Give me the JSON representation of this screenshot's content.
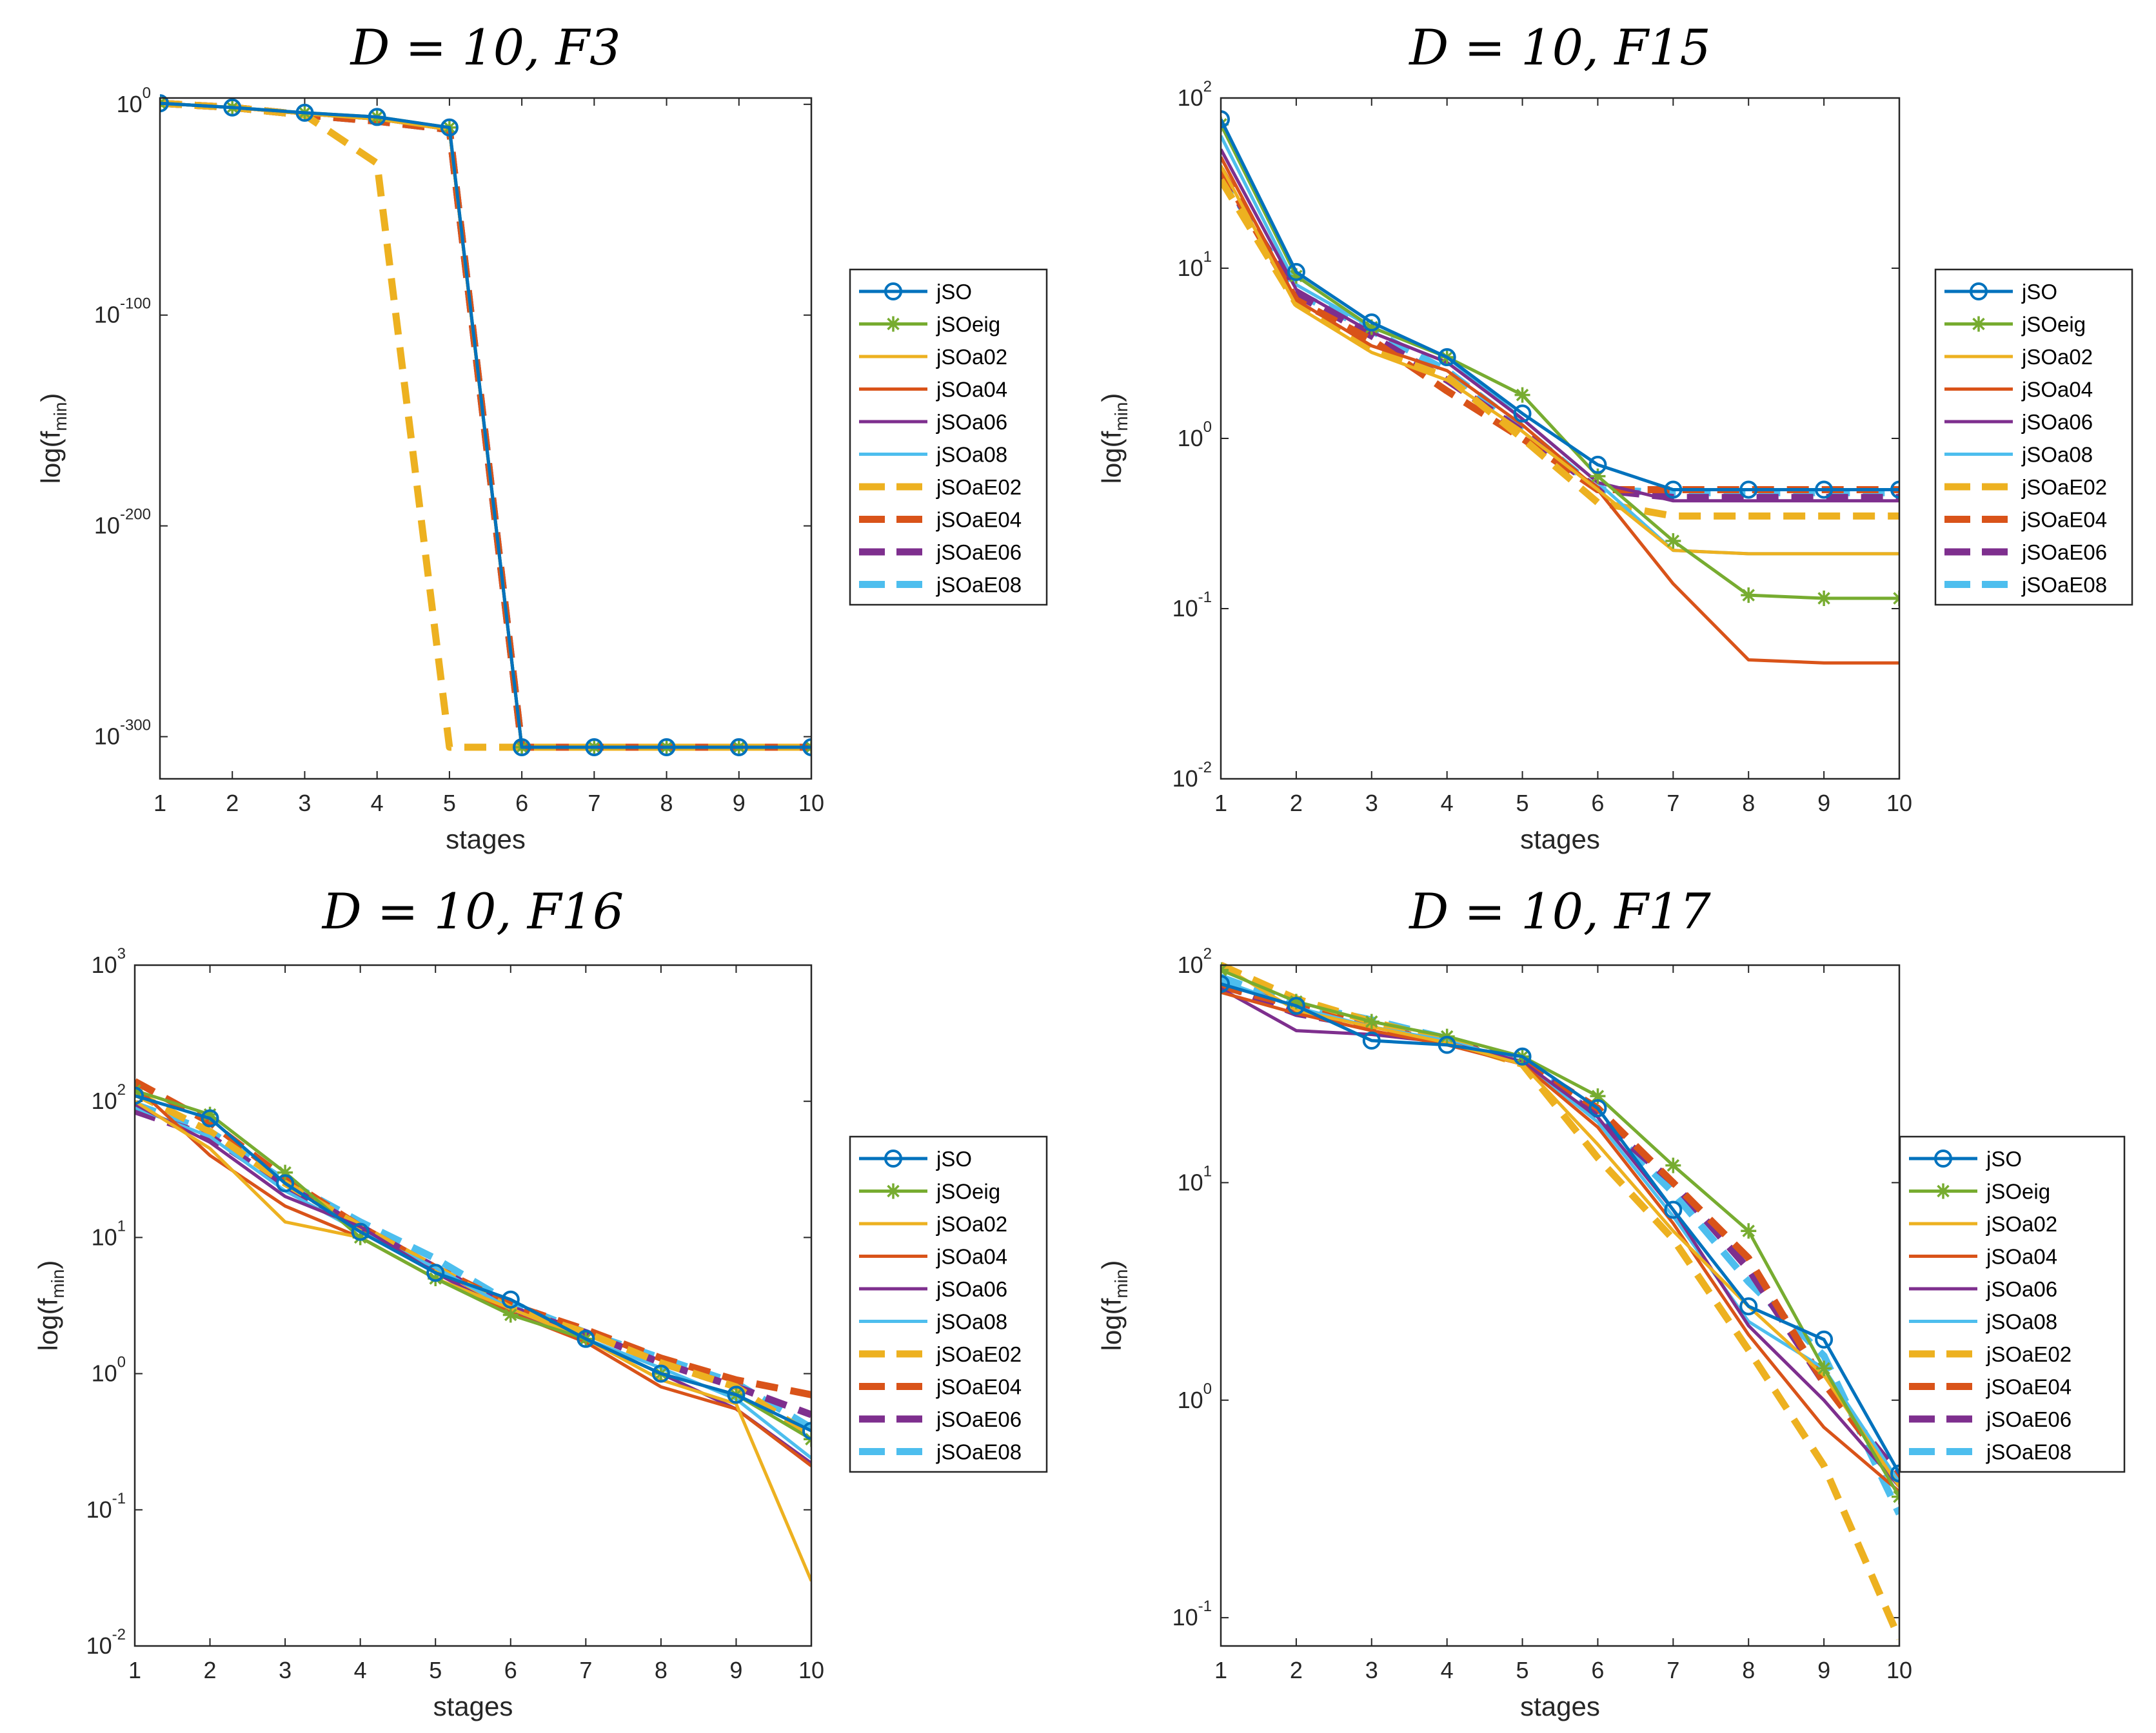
{
  "ylabel": "log(f",
  "ylabel_sub": "min",
  "ylabel_close": ")",
  "colors": {
    "jSO": "#0072BD",
    "jSOeig": "#77AC30",
    "jSOa02": "#EDB120",
    "jSOa04": "#D95319",
    "jSOa06": "#7E2F8E",
    "jSOa08": "#4DBEEE",
    "jSOaE02": "#EDB120",
    "jSOaE04": "#D95319",
    "jSOaE06": "#7E2F8E",
    "jSOaE08": "#4DBEEE"
  },
  "legend": [
    {
      "name": "jSO",
      "style": "solid",
      "marker": "circle"
    },
    {
      "name": "jSOeig",
      "style": "solid",
      "marker": "star"
    },
    {
      "name": "jSOa02",
      "style": "solid",
      "marker": "none"
    },
    {
      "name": "jSOa04",
      "style": "solid",
      "marker": "none"
    },
    {
      "name": "jSOa06",
      "style": "solid",
      "marker": "none"
    },
    {
      "name": "jSOa08",
      "style": "solid",
      "marker": "none"
    },
    {
      "name": "jSOaE02",
      "style": "dashed",
      "marker": "none"
    },
    {
      "name": "jSOaE04",
      "style": "dashed",
      "marker": "none"
    },
    {
      "name": "jSOaE06",
      "style": "dashed",
      "marker": "none"
    },
    {
      "name": "jSOaE08",
      "style": "dashed",
      "marker": "none"
    }
  ],
  "chart_data": [
    {
      "type": "line",
      "title_prefix": "D = 10, ",
      "title_func": "F3",
      "xlabel": "stages",
      "yscale": "log",
      "x": [
        1,
        2,
        3,
        4,
        5,
        6,
        7,
        8,
        9,
        10
      ],
      "xlim": [
        1,
        10
      ],
      "ylim_exp": [
        -320,
        3
      ],
      "yticks_exp": [
        0,
        -100,
        -200,
        -300
      ],
      "values_as": "log10",
      "series": [
        {
          "name": "jSO",
          "values": [
            0.5,
            -1.5,
            -4,
            -6,
            -11,
            -305,
            -305,
            -305,
            -305,
            -305
          ]
        },
        {
          "name": "jSOeig",
          "values": [
            0.5,
            -1.5,
            -4,
            -6,
            -11,
            -305,
            -305,
            -305,
            -305,
            -305
          ]
        },
        {
          "name": "jSOa02",
          "values": [
            0.5,
            -1.5,
            -4.5,
            -7,
            -12,
            -305,
            -305,
            -305,
            -305,
            -305
          ]
        },
        {
          "name": "jSOa04",
          "values": [
            0.5,
            -1.5,
            -4.5,
            -7,
            -12,
            -305,
            -305,
            -305,
            -305,
            -305
          ]
        },
        {
          "name": "jSOa06",
          "values": [
            0.5,
            -1.5,
            -4.5,
            -7,
            -12,
            -305,
            -305,
            -305,
            -305,
            -305
          ]
        },
        {
          "name": "jSOa08",
          "values": [
            0.5,
            -1.5,
            -4.5,
            -7,
            -12,
            -305,
            -305,
            -305,
            -305,
            -305
          ]
        },
        {
          "name": "jSOaE02",
          "values": [
            0.5,
            -1.5,
            -5,
            -28,
            -305,
            -305,
            -305,
            -305,
            -305,
            -305
          ]
        },
        {
          "name": "jSOaE04",
          "values": [
            0.5,
            -1.5,
            -5,
            -8,
            -12,
            -305,
            -305,
            -305,
            -305,
            -305
          ]
        },
        {
          "name": "jSOaE06",
          "values": [
            0.5,
            -1.5,
            -5,
            -8,
            -12,
            -305,
            -305,
            -305,
            -305,
            -305
          ]
        },
        {
          "name": "jSOaE08",
          "values": [
            0.5,
            -1.5,
            -5,
            -8,
            -12,
            -305,
            -305,
            -305,
            -305,
            -305
          ]
        }
      ]
    },
    {
      "type": "line",
      "title_prefix": "D = 10, ",
      "title_func": "F15",
      "xlabel": "stages",
      "yscale": "log",
      "x": [
        1,
        2,
        3,
        4,
        5,
        6,
        7,
        8,
        9,
        10
      ],
      "xlim": [
        1,
        10
      ],
      "ylim_exp": [
        -2,
        2
      ],
      "yticks_exp": [
        -2,
        -1,
        0,
        1,
        2
      ],
      "values_as": "raw",
      "series": [
        {
          "name": "jSO",
          "values": [
            75,
            9.5,
            4.8,
            3.0,
            1.4,
            0.7,
            0.5,
            0.5,
            0.5,
            0.5
          ]
        },
        {
          "name": "jSOeig",
          "values": [
            70,
            9.0,
            4.5,
            3.0,
            1.8,
            0.6,
            0.25,
            0.12,
            0.115,
            0.115
          ]
        },
        {
          "name": "jSOa02",
          "values": [
            40,
            6.0,
            3.2,
            2.2,
            1.1,
            0.5,
            0.22,
            0.21,
            0.21,
            0.21
          ]
        },
        {
          "name": "jSOa04",
          "values": [
            45,
            6.5,
            3.5,
            2.5,
            1.2,
            0.5,
            0.14,
            0.05,
            0.048,
            0.048
          ]
        },
        {
          "name": "jSOa06",
          "values": [
            50,
            7.5,
            4.2,
            2.8,
            1.3,
            0.55,
            0.43,
            0.43,
            0.43,
            0.43
          ]
        },
        {
          "name": "jSOa08",
          "values": [
            60,
            8.0,
            4.5,
            3.0,
            1.3,
            0.55,
            0.22,
            0.21,
            0.21,
            0.21
          ]
        },
        {
          "name": "jSOaE02",
          "values": [
            33,
            6.2,
            3.3,
            2.3,
            1.0,
            0.42,
            0.35,
            0.35,
            0.35,
            0.35
          ]
        },
        {
          "name": "jSOaE04",
          "values": [
            38,
            6.5,
            3.8,
            1.9,
            1.0,
            0.5,
            0.5,
            0.5,
            0.5,
            0.5
          ]
        },
        {
          "name": "jSOaE06",
          "values": [
            36,
            7.0,
            4.0,
            2.2,
            1.1,
            0.5,
            0.45,
            0.45,
            0.45,
            0.45
          ]
        },
        {
          "name": "jSOaE08",
          "values": [
            35,
            7.2,
            4.3,
            2.5,
            1.15,
            0.5,
            0.48,
            0.48,
            0.48,
            0.48
          ]
        }
      ]
    },
    {
      "type": "line",
      "title_prefix": "D = 10, ",
      "title_func": "F16",
      "xlabel": "stages",
      "yscale": "log",
      "x": [
        1,
        2,
        3,
        4,
        5,
        6,
        7,
        8,
        9,
        10
      ],
      "xlim": [
        1,
        10
      ],
      "ylim_exp": [
        -2,
        3
      ],
      "yticks_exp": [
        -2,
        -1,
        0,
        1,
        2,
        3
      ],
      "values_as": "raw",
      "series": [
        {
          "name": "jSO",
          "values": [
            110,
            75,
            25,
            11,
            5.5,
            3.5,
            1.8,
            1.0,
            0.7,
            0.38
          ]
        },
        {
          "name": "jSOeig",
          "values": [
            120,
            80,
            30,
            10,
            5.0,
            2.7,
            1.8,
            1.0,
            0.7,
            0.33
          ]
        },
        {
          "name": "jSOa02",
          "values": [
            100,
            45,
            13,
            10,
            5.0,
            3.0,
            1.8,
            0.9,
            0.6,
            0.03
          ]
        },
        {
          "name": "jSOa04",
          "values": [
            130,
            40,
            17,
            10,
            5.0,
            2.8,
            1.7,
            0.8,
            0.55,
            0.21
          ]
        },
        {
          "name": "jSOa06",
          "values": [
            95,
            50,
            20,
            12,
            5.5,
            2.8,
            1.8,
            1.0,
            0.55,
            0.22
          ]
        },
        {
          "name": "jSOa08",
          "values": [
            90,
            55,
            22,
            11,
            6.0,
            3.0,
            1.8,
            1.1,
            0.65,
            0.24
          ]
        },
        {
          "name": "jSOaE02",
          "values": [
            115,
            60,
            25,
            12,
            6.0,
            3.0,
            2.0,
            1.2,
            0.8,
            0.35
          ]
        },
        {
          "name": "jSOaE04",
          "values": [
            140,
            70,
            27,
            12,
            6.0,
            3.2,
            2.1,
            1.3,
            0.9,
            0.7
          ]
        },
        {
          "name": "jSOaE06",
          "values": [
            85,
            55,
            24,
            12,
            6.0,
            3.0,
            2.0,
            1.2,
            0.8,
            0.5
          ]
        },
        {
          "name": "jSOaE08",
          "values": [
            95,
            60,
            26,
            13,
            7.0,
            3.3,
            2.0,
            1.3,
            0.85,
            0.4
          ]
        }
      ]
    },
    {
      "type": "line",
      "title_prefix": "D = 10, ",
      "title_func": "F17",
      "xlabel": "stages",
      "yscale": "log",
      "x": [
        1,
        2,
        3,
        4,
        5,
        6,
        7,
        8,
        9,
        10
      ],
      "xlim": [
        1,
        10
      ],
      "ylim_exp": [
        -1.13,
        2
      ],
      "yticks_exp": [
        -1,
        0,
        1,
        2
      ],
      "values_as": "raw",
      "series": [
        {
          "name": "jSO",
          "values": [
            82,
            65,
            45,
            43,
            38,
            22,
            7.5,
            2.7,
            1.9,
            0.46
          ]
        },
        {
          "name": "jSOeig",
          "values": [
            95,
            68,
            55,
            47,
            38,
            25,
            12,
            6.0,
            1.4,
            0.36
          ]
        },
        {
          "name": "jSOa02",
          "values": [
            100,
            62,
            52,
            44,
            35,
            15,
            6.0,
            2.7,
            1.3,
            0.4
          ]
        },
        {
          "name": "jSOa04",
          "values": [
            75,
            60,
            50,
            43,
            35,
            18,
            6.5,
            2.0,
            0.75,
            0.38
          ]
        },
        {
          "name": "jSOa06",
          "values": [
            78,
            50,
            48,
            44,
            36,
            20,
            7.5,
            2.2,
            1.0,
            0.4
          ]
        },
        {
          "name": "jSOa08",
          "values": [
            85,
            64,
            52,
            45,
            36,
            19,
            7.0,
            2.3,
            1.4,
            0.42
          ]
        },
        {
          "name": "jSOaE02",
          "values": [
            105,
            70,
            55,
            45,
            35,
            13,
            5.5,
            1.7,
            0.5,
            0.08
          ]
        },
        {
          "name": "jSOaE04",
          "values": [
            80,
            65,
            52,
            44,
            36,
            22,
            10,
            4.5,
            1.2,
            0.42
          ]
        },
        {
          "name": "jSOaE06",
          "values": [
            82,
            60,
            52,
            44,
            37,
            20,
            10,
            4.0,
            1.2,
            0.45
          ]
        },
        {
          "name": "jSOaE08",
          "values": [
            88,
            66,
            56,
            46,
            37,
            20,
            9.0,
            3.5,
            1.6,
            0.3
          ]
        }
      ]
    }
  ]
}
